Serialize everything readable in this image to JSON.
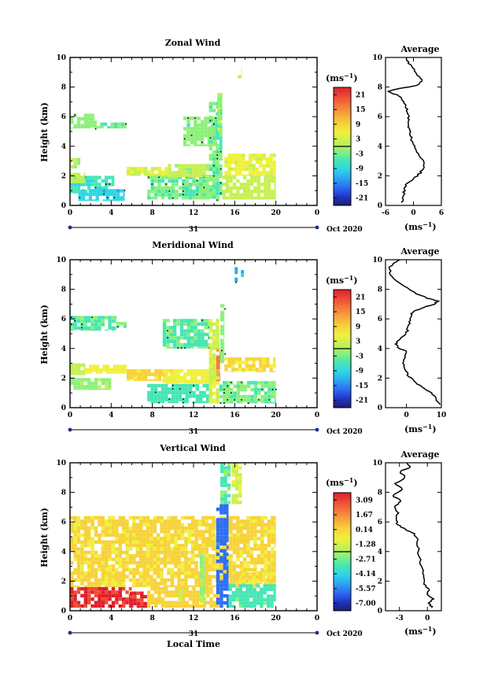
{
  "colors": {
    "colorbar": [
      "#1b1f6b",
      "#2236c8",
      "#2d6ef5",
      "#2aa8f2",
      "#2fd6e6",
      "#46e6b4",
      "#8cf07a",
      "#c6f050",
      "#f0f03c",
      "#f7d23a",
      "#f7a83a",
      "#f4783a",
      "#ee4a36",
      "#e01e2a"
    ],
    "marker": "#1c2f8f"
  },
  "chart_data": [
    {
      "type": "heatmap",
      "title": "Zonal Wind",
      "ylabel": "Height (km)",
      "xlabel": "",
      "xticks": [
        "0",
        "4",
        "8",
        "12",
        "16",
        "20",
        "0"
      ],
      "yticks": [
        "0",
        "2",
        "4",
        "6",
        "8",
        "10"
      ],
      "xlim": [
        0,
        24
      ],
      "ylim": [
        0,
        10
      ],
      "day_label": "31",
      "date_label": "Oct 2020",
      "colorbar": {
        "unit": "(ms",
        "unit_exp": "−1",
        "unit_close": ")",
        "ticks": [
          "21",
          "15",
          "9",
          "3",
          "-3",
          "-9",
          "-15",
          "-21"
        ],
        "range": [
          -24,
          24
        ]
      },
      "patches": [
        {
          "x0": 0,
          "x1": 2.6,
          "y0": 5.2,
          "y1": 6.2,
          "v": -2
        },
        {
          "x0": 2.6,
          "x1": 5.5,
          "y0": 5.2,
          "y1": 5.6,
          "v": -4
        },
        {
          "x0": 0,
          "x1": 1.0,
          "y0": 2.5,
          "y1": 3.2,
          "v": 1
        },
        {
          "x0": 0,
          "x1": 4.3,
          "y0": 0.8,
          "y1": 2.0,
          "v": -6
        },
        {
          "x0": 0.8,
          "x1": 5.3,
          "y0": 0.3,
          "y1": 1.1,
          "v": -9
        },
        {
          "x0": 0,
          "x1": 1.5,
          "y0": 1.5,
          "y1": 2.2,
          "v": 1
        },
        {
          "x0": 5.5,
          "x1": 9.5,
          "y0": 2.0,
          "y1": 2.6,
          "v": 3
        },
        {
          "x0": 7.5,
          "x1": 13.5,
          "y0": 0.4,
          "y1": 2.0,
          "v": -3
        },
        {
          "x0": 9.5,
          "x1": 13.5,
          "y0": 1.9,
          "y1": 2.8,
          "v": 1
        },
        {
          "x0": 11.0,
          "x1": 14.3,
          "y0": 4.0,
          "y1": 6.0,
          "v": -2
        },
        {
          "x0": 13.5,
          "x1": 14.8,
          "y0": 0.3,
          "y1": 7.0,
          "v": -3
        },
        {
          "x0": 14.3,
          "x1": 14.8,
          "y0": 5.0,
          "y1": 7.6,
          "v": -1
        },
        {
          "x0": 15.0,
          "x1": 20.0,
          "y0": 2.0,
          "y1": 3.5,
          "v": 4
        },
        {
          "x0": 14.8,
          "x1": 20.0,
          "y0": 0.4,
          "y1": 2.0,
          "v": 2
        },
        {
          "x0": 16.3,
          "x1": 16.7,
          "y0": 8.6,
          "y1": 9.5,
          "v": 3
        }
      ],
      "avg": {
        "title": "Average",
        "xlabel": "(ms",
        "xlabel_exp": "−1",
        "xlabel_close": ")",
        "xticks": [
          "-6",
          "0",
          "6"
        ],
        "xtick_values": [
          -6,
          0,
          6
        ],
        "xlim": [
          -6,
          6
        ],
        "ylim": [
          0,
          10
        ],
        "yticks": [
          "0",
          "2",
          "4",
          "6",
          "8",
          "10"
        ],
        "profile": [
          [
            -2.5,
            0.2
          ],
          [
            -2.2,
            0.6
          ],
          [
            -2.0,
            1.0
          ],
          [
            -1.5,
            1.4
          ],
          [
            0,
            1.8
          ],
          [
            1.5,
            2.2
          ],
          [
            2.2,
            2.6
          ],
          [
            2.0,
            3.0
          ],
          [
            1.2,
            3.4
          ],
          [
            0.5,
            3.8
          ],
          [
            -0.2,
            4.2
          ],
          [
            -0.5,
            4.6
          ],
          [
            -0.8,
            5.0
          ],
          [
            -1.0,
            5.4
          ],
          [
            -1.0,
            5.8
          ],
          [
            -1.2,
            6.2
          ],
          [
            -1.5,
            6.6
          ],
          [
            -2.0,
            7.0
          ],
          [
            -3.0,
            7.4
          ],
          [
            -5.5,
            7.7
          ],
          [
            -3.0,
            7.9
          ],
          [
            0.5,
            8.1
          ],
          [
            2.0,
            8.4
          ],
          [
            1.0,
            8.8
          ],
          [
            0,
            9.2
          ],
          [
            -1.0,
            9.6
          ],
          [
            -1.5,
            10.0
          ]
        ]
      }
    },
    {
      "type": "heatmap",
      "title": "Meridional Wind",
      "ylabel": "Height (km)",
      "xlabel": "",
      "xticks": [
        "0",
        "4",
        "8",
        "12",
        "16",
        "20",
        "0"
      ],
      "yticks": [
        "0",
        "2",
        "4",
        "6",
        "8",
        "10"
      ],
      "xlim": [
        0,
        24
      ],
      "ylim": [
        0,
        10
      ],
      "day_label": "31",
      "date_label": "Oct 2020",
      "colorbar": {
        "unit": "(ms",
        "unit_exp": "−1",
        "unit_close": ")",
        "ticks": [
          "21",
          "15",
          "9",
          "3",
          "-3",
          "-9",
          "-15",
          "-21"
        ],
        "range": [
          -24,
          24
        ]
      },
      "patches": [
        {
          "x0": 0,
          "x1": 4.5,
          "y0": 5.2,
          "y1": 6.2,
          "v": -4
        },
        {
          "x0": 4.5,
          "x1": 5.5,
          "y0": 5.4,
          "y1": 5.8,
          "v": -3
        },
        {
          "x0": 0,
          "x1": 1.5,
          "y0": 2.2,
          "y1": 3.0,
          "v": 2
        },
        {
          "x0": 0,
          "x1": 4.0,
          "y0": 1.2,
          "y1": 2.0,
          "v": -1
        },
        {
          "x0": 1.5,
          "x1": 5.5,
          "y0": 2.3,
          "y1": 2.9,
          "v": 5
        },
        {
          "x0": 5.5,
          "x1": 10.0,
          "y0": 1.8,
          "y1": 2.6,
          "v": 8
        },
        {
          "x0": 7.5,
          "x1": 13.5,
          "y0": 0.3,
          "y1": 1.6,
          "v": -5
        },
        {
          "x0": 9.0,
          "x1": 13.5,
          "y0": 1.6,
          "y1": 2.6,
          "v": 5
        },
        {
          "x0": 9.0,
          "x1": 13.5,
          "y0": 4.0,
          "y1": 6.0,
          "v": -4
        },
        {
          "x0": 13.5,
          "x1": 14.5,
          "y0": 0.3,
          "y1": 6.0,
          "v": 3
        },
        {
          "x0": 14.2,
          "x1": 14.6,
          "y0": 1.8,
          "y1": 4.0,
          "v": 14
        },
        {
          "x0": 14.6,
          "x1": 15.0,
          "y0": 3.0,
          "y1": 7.0,
          "v": -2
        },
        {
          "x0": 15.0,
          "x1": 20.0,
          "y0": 2.4,
          "y1": 3.4,
          "v": 7
        },
        {
          "x0": 14.5,
          "x1": 20.0,
          "y0": 0.3,
          "y1": 1.8,
          "v": -3
        },
        {
          "x0": 16.0,
          "x1": 16.3,
          "y0": 8.5,
          "y1": 9.5,
          "v": -12
        },
        {
          "x0": 16.6,
          "x1": 16.9,
          "y0": 8.6,
          "y1": 9.3,
          "v": -10
        }
      ],
      "avg": {
        "title": "Average",
        "xlabel": "(ms",
        "xlabel_exp": "−1",
        "xlabel_close": ")",
        "xticks": [
          "0",
          "10"
        ],
        "xtick_values": [
          0,
          10
        ],
        "xlim": [
          -6,
          10
        ],
        "ylim": [
          0,
          10
        ],
        "yticks": [
          "0",
          "2",
          "4",
          "6",
          "8",
          "10"
        ],
        "profile": [
          [
            9.5,
            0.2
          ],
          [
            8.5,
            0.6
          ],
          [
            7.0,
            1.0
          ],
          [
            4.5,
            1.4
          ],
          [
            2.0,
            1.8
          ],
          [
            0.5,
            2.2
          ],
          [
            -0.5,
            2.6
          ],
          [
            -1.0,
            3.0
          ],
          [
            -0.5,
            3.4
          ],
          [
            0,
            3.8
          ],
          [
            -2.0,
            4.0
          ],
          [
            -3.0,
            4.3
          ],
          [
            -2.0,
            4.6
          ],
          [
            0,
            5.0
          ],
          [
            0.5,
            5.4
          ],
          [
            1.0,
            5.8
          ],
          [
            1.2,
            6.2
          ],
          [
            2.0,
            6.5
          ],
          [
            5.0,
            6.8
          ],
          [
            8.0,
            7.0
          ],
          [
            9.0,
            7.2
          ],
          [
            6.0,
            7.4
          ],
          [
            2.0,
            7.8
          ],
          [
            -2.0,
            8.4
          ],
          [
            -4.5,
            9.0
          ],
          [
            -5.0,
            9.5
          ],
          [
            -2.0,
            10.0
          ]
        ]
      }
    },
    {
      "type": "heatmap",
      "title": "Vertical Wind",
      "ylabel": "Height (km)",
      "xlabel": "Local Time",
      "xticks": [
        "0",
        "4",
        "8",
        "12",
        "16",
        "20",
        "0"
      ],
      "yticks": [
        "0",
        "2",
        "4",
        "6",
        "8",
        "10"
      ],
      "xlim": [
        0,
        24
      ],
      "ylim": [
        0,
        10
      ],
      "day_label": "31",
      "date_label": "Oct 2020",
      "colorbar": {
        "unit": "(ms",
        "unit_exp": "−1",
        "unit_close": ")",
        "ticks": [
          "3.09",
          "1.67",
          "0.14",
          "-1.28",
          "-2.71",
          "-4.14",
          "-5.57",
          "-7.00"
        ],
        "range": [
          -8.4,
          4.5
        ]
      },
      "patches": [
        {
          "x0": 0,
          "x1": 6.0,
          "y0": 0.2,
          "y1": 1.6,
          "v": 3.6
        },
        {
          "x0": 5.8,
          "x1": 7.5,
          "y0": 0.2,
          "y1": 1.3,
          "v": 3.8
        },
        {
          "x0": 0,
          "x1": 20.0,
          "y0": 1.6,
          "y1": 6.4,
          "v": 0.1
        },
        {
          "x0": 7.5,
          "x1": 14.5,
          "y0": 0.2,
          "y1": 1.6,
          "v": 0.3
        },
        {
          "x0": 10.5,
          "x1": 11.0,
          "y0": 0.6,
          "y1": 1.4,
          "v": -1.3
        },
        {
          "x0": 12.6,
          "x1": 13.1,
          "y0": 0.5,
          "y1": 3.8,
          "v": -2.0
        },
        {
          "x0": 14.2,
          "x1": 15.4,
          "y0": 0.2,
          "y1": 7.2,
          "v": -6.0
        },
        {
          "x0": 14.6,
          "x1": 15.6,
          "y0": 7.2,
          "y1": 10.0,
          "v": -3.0
        },
        {
          "x0": 15.7,
          "x1": 16.7,
          "y0": 7.2,
          "y1": 10.0,
          "v": -1.2
        },
        {
          "x0": 15.4,
          "x1": 20.0,
          "y0": 0.2,
          "y1": 1.8,
          "v": -3.2
        },
        {
          "x0": 16.0,
          "x1": 20.0,
          "y0": 1.8,
          "y1": 2.6,
          "v": -0.2
        }
      ],
      "avg": {
        "title": "Average",
        "xlabel": "(ms",
        "xlabel_exp": "−1",
        "xlabel_close": ")",
        "xticks": [
          "-3",
          "0"
        ],
        "xtick_values": [
          -3,
          0
        ],
        "xlim": [
          -4.5,
          1.5
        ],
        "ylim": [
          0,
          10
        ],
        "yticks": [
          "0",
          "2",
          "4",
          "6",
          "8",
          "10"
        ],
        "profile": [
          [
            0.5,
            0.2
          ],
          [
            0.2,
            0.5
          ],
          [
            0.6,
            0.8
          ],
          [
            0,
            1.1
          ],
          [
            0.2,
            1.4
          ],
          [
            -0.3,
            1.8
          ],
          [
            -0.5,
            2.4
          ],
          [
            -0.6,
            3.0
          ],
          [
            -0.9,
            3.6
          ],
          [
            -1.0,
            4.2
          ],
          [
            -1.1,
            4.8
          ],
          [
            -1.4,
            5.2
          ],
          [
            -2.4,
            5.5
          ],
          [
            -3.2,
            5.8
          ],
          [
            -3.4,
            6.2
          ],
          [
            -3.2,
            6.6
          ],
          [
            -3.6,
            7.0
          ],
          [
            -2.8,
            7.4
          ],
          [
            -3.8,
            7.8
          ],
          [
            -2.6,
            8.2
          ],
          [
            -3.4,
            8.6
          ],
          [
            -2.4,
            9.0
          ],
          [
            -3.0,
            9.4
          ],
          [
            -1.8,
            9.7
          ],
          [
            -2.2,
            10.0
          ]
        ]
      }
    }
  ]
}
